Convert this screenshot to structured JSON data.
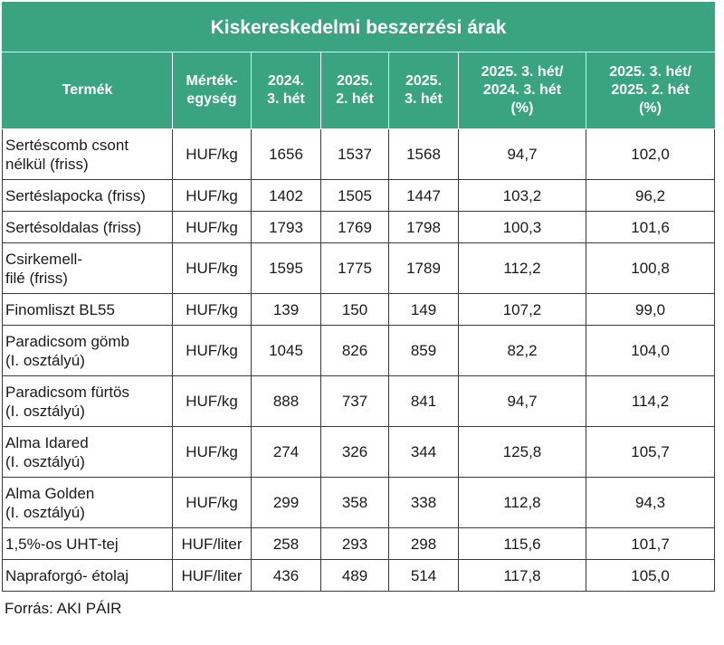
{
  "title": "Kiskereskedelmi beszerzési árak",
  "headers": [
    "Termék",
    "Mérték-\negység",
    "2024.\n3. hét",
    "2025.\n2. hét",
    "2025.\n3. hét",
    "2025. 3. hét/\n2024. 3. hét\n(%)",
    "2025. 3.  hét/\n2025. 2. hét\n(%)"
  ],
  "rows": [
    [
      "Sertéscomb csont\nnélkül (friss)",
      "HUF/kg",
      "1656",
      "1537",
      "1568",
      "94,7",
      "102,0"
    ],
    [
      "Sertéslapocka (friss)",
      "HUF/kg",
      "1402",
      "1505",
      "1447",
      "103,2",
      "96,2"
    ],
    [
      "Sertésoldalas (friss)",
      "HUF/kg",
      "1793",
      "1769",
      "1798",
      "100,3",
      "101,6"
    ],
    [
      "Csirkemell-\nfilé (friss)",
      "HUF/kg",
      "1595",
      "1775",
      "1789",
      "112,2",
      "100,8"
    ],
    [
      "Finomliszt BL55",
      "HUF/kg",
      "139",
      "150",
      "149",
      "107,2",
      "99,0"
    ],
    [
      "Paradicsom gömb\n(I. osztályú)",
      "HUF/kg",
      "1045",
      "826",
      "859",
      "82,2",
      "104,0"
    ],
    [
      "Paradicsom fürtös\n(I. osztályú)",
      "HUF/kg",
      "888",
      "737",
      "841",
      "94,7",
      "114,2"
    ],
    [
      "Alma Idared\n(I. osztályú)",
      "HUF/kg",
      "274",
      "326",
      "344",
      "125,8",
      "105,7"
    ],
    [
      "Alma Golden\n(I. osztályú)",
      "HUF/kg",
      "299",
      "358",
      "338",
      "112,8",
      "94,3"
    ],
    [
      "1,5%-os UHT-tej",
      "HUF/liter",
      "258",
      "293",
      "298",
      "115,6",
      "101,7"
    ],
    [
      "Napraforgó- étolaj",
      "HUF/liter",
      "436",
      "489",
      "514",
      "117,8",
      "105,0"
    ]
  ],
  "source": "Forrás: AKI PÁIR",
  "colors": {
    "header_bg": "#3aa481",
    "header_text": "#ffffff",
    "border": "#3a3a3a"
  }
}
